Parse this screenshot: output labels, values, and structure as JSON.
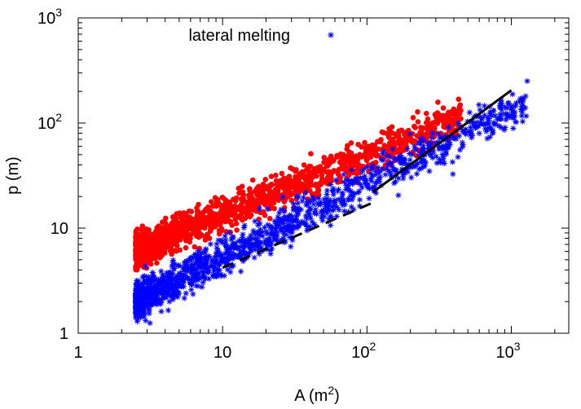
{
  "chart_data": {
    "type": "scatter",
    "xlabel": "A (m",
    "xlabel_sup": "2",
    "xlabel_suffix": ")",
    "ylabel": "p (m)",
    "x_scale": "log",
    "y_scale": "log",
    "xlim": [
      1,
      2500
    ],
    "ylim": [
      1,
      1000
    ],
    "x_ticks": [
      {
        "value": 1,
        "base": "1",
        "exp": ""
      },
      {
        "value": 10,
        "base": "10",
        "exp": ""
      },
      {
        "value": 100,
        "base": "10",
        "exp": "2"
      },
      {
        "value": 1000,
        "base": "10",
        "exp": "3"
      }
    ],
    "y_ticks": [
      {
        "value": 1,
        "base": "1",
        "exp": ""
      },
      {
        "value": 10,
        "base": "10",
        "exp": ""
      },
      {
        "value": 100,
        "base": "10",
        "exp": "2"
      },
      {
        "value": 1000,
        "base": "10",
        "exp": "3"
      }
    ],
    "grid": false,
    "legend_position": "top-left",
    "series": [
      {
        "marker": "circle",
        "color": "#ff0000",
        "n_points": 1400,
        "x_range": [
          2.5,
          450
        ],
        "trend": {
          "a": 3.7,
          "b": 0.56
        },
        "scatter_sigma": 0.085
      },
      {
        "name": "lateral melting",
        "marker": "star",
        "color": "#0000ff",
        "n_points": 1400,
        "x_range": [
          2.5,
          1300
        ],
        "trend": {
          "a": 1.05,
          "b": 0.7
        },
        "scatter_sigma": 0.09
      }
    ],
    "reference_lines": [
      {
        "style": "dashed",
        "color": "#000000",
        "x": [
          10,
          110
        ],
        "y": [
          4.2,
          17.5
        ]
      },
      {
        "style": "solid",
        "color": "#000000",
        "x": [
          110,
          1000
        ],
        "y": [
          22,
          205
        ]
      }
    ]
  }
}
